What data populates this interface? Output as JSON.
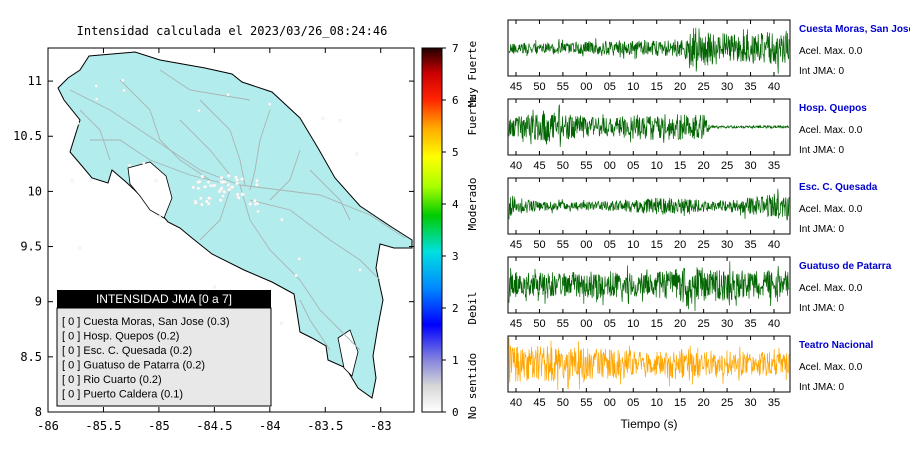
{
  "map": {
    "title": "Intensidad calculada el 2023/03/26_08:24:46",
    "lon_ticks": [
      "-86",
      "-85.5",
      "-85",
      "-84.5",
      "-84",
      "-83.5",
      "-83"
    ],
    "lat_ticks": [
      "11",
      "10.5",
      "10",
      "9.5",
      "9",
      "8.5",
      "8"
    ],
    "lon_range": [
      -86,
      -82.7
    ],
    "lat_range": [
      8,
      11.3
    ],
    "land_color": "#b3ecec",
    "legend": {
      "title": "INTENSIDAD JMA [0 a 7]",
      "items": [
        "[ 0 ]  Cuesta Moras, San Jose (0.3)",
        "[ 0 ]  Hosp. Quepos (0.2)",
        "[ 0 ]  Esc. C. Quesada (0.2)",
        "[ 0 ]  Guatuso de Patarra (0.2)",
        "[ 0 ]  Rio Cuarto (0.2)",
        "[ 0 ]  Puerto Caldera (0.1)"
      ]
    }
  },
  "colorbar": {
    "ticks": [
      "0",
      "1",
      "2",
      "3",
      "4",
      "5",
      "6",
      "7"
    ],
    "labels": [
      "No sentido",
      "Debil",
      "Moderado",
      "Fuerte",
      "Muy Fuerte"
    ],
    "range": [
      0,
      7
    ]
  },
  "chart_data": [
    {
      "type": "line",
      "station": "Cuesta Moras, San Jose",
      "pga": "Acel. Max. 0.0",
      "jma": "Int JMA: 0",
      "color": "#006400",
      "x_ticks": [
        "45",
        "50",
        "55",
        "00",
        "05",
        "10",
        "15",
        "20",
        "25",
        "30",
        "35",
        "40"
      ],
      "envelope": [
        [
          0,
          0.2
        ],
        [
          0.3,
          0.25
        ],
        [
          0.62,
          0.35
        ],
        [
          0.66,
          0.85
        ],
        [
          0.8,
          0.55
        ],
        [
          1.0,
          0.7
        ]
      ]
    },
    {
      "type": "line",
      "station": "Hosp. Quepos",
      "pga": "Acel. Max. 0.0",
      "jma": "Int JMA: 0",
      "color": "#006400",
      "x_ticks": [
        "40",
        "45",
        "50",
        "55",
        "00",
        "05",
        "10",
        "15",
        "20",
        "25",
        "30",
        "35"
      ],
      "envelope": [
        [
          0,
          0.4
        ],
        [
          0.15,
          0.6
        ],
        [
          0.35,
          0.35
        ],
        [
          0.5,
          0.55
        ],
        [
          0.7,
          0.5
        ],
        [
          0.72,
          0.05
        ],
        [
          1.0,
          0.05
        ]
      ]
    },
    {
      "type": "line",
      "station": "Esc. C. Quesada",
      "pga": "Acel. Max. 0.0",
      "jma": "Int JMA: 0",
      "color": "#006400",
      "x_ticks": [
        "45",
        "50",
        "55",
        "00",
        "05",
        "10",
        "15",
        "20",
        "25",
        "30",
        "35",
        "40"
      ],
      "envelope": [
        [
          0,
          0.45
        ],
        [
          0.1,
          0.2
        ],
        [
          0.3,
          0.15
        ],
        [
          0.55,
          0.35
        ],
        [
          0.75,
          0.2
        ],
        [
          0.9,
          0.4
        ],
        [
          1.0,
          0.6
        ]
      ]
    },
    {
      "type": "line",
      "station": "Guatuso de Patarra",
      "pga": "Acel. Max. 0.0",
      "jma": "Int JMA: 0",
      "color": "#006400",
      "x_ticks": [
        "45",
        "50",
        "55",
        "00",
        "05",
        "10",
        "15",
        "20",
        "25",
        "30",
        "35",
        "40"
      ],
      "envelope": [
        [
          0,
          0.5
        ],
        [
          0.2,
          0.55
        ],
        [
          0.5,
          0.5
        ],
        [
          0.65,
          0.75
        ],
        [
          0.8,
          0.6
        ],
        [
          1.0,
          0.55
        ]
      ]
    },
    {
      "type": "line",
      "station": "Teatro Nacional",
      "pga": "Acel. Max. 0.0",
      "jma": "Int JMA: 0",
      "color": "#ffa500",
      "x_ticks": [
        "40",
        "45",
        "50",
        "55",
        "00",
        "05",
        "10",
        "15",
        "20",
        "25",
        "30",
        "35"
      ],
      "xlabel": "Tiempo (s)",
      "envelope": [
        [
          0,
          0.75
        ],
        [
          0.2,
          0.7
        ],
        [
          0.45,
          0.55
        ],
        [
          0.62,
          0.6
        ],
        [
          0.8,
          0.5
        ],
        [
          1.0,
          0.45
        ]
      ]
    }
  ]
}
